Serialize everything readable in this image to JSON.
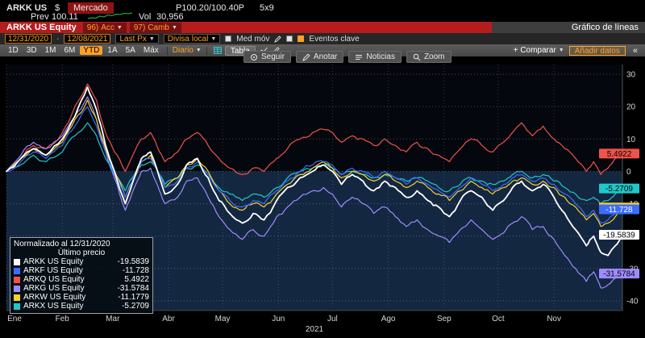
{
  "titlebar": {
    "ticker": "ARKK US",
    "currency": "$",
    "market_status": "Mercado",
    "quote": "P100.20/100.40P",
    "lot_size": "5x9",
    "prev_label": "Prev",
    "prev_value": "100.11",
    "vol_label": "Vol",
    "vol_value": "30,956"
  },
  "function_bar": {
    "security": "ARKK US Equity",
    "actions": [
      {
        "num": "96)",
        "label": "Acc"
      },
      {
        "num": "97)",
        "label": "Camb"
      }
    ],
    "screen_title": "Gráfico de líneas"
  },
  "settings_bar": {
    "date_from": "12/31/2020",
    "date_to": "12/08/2021",
    "price_field": "Last Px",
    "currency_mode": "Divisa local",
    "mov_avg": "Med móv",
    "key_events": "Eventos clave"
  },
  "period_bar": {
    "ranges": [
      "1D",
      "3D",
      "1M",
      "6M",
      "YTD",
      "1A",
      "5A",
      "Máx"
    ],
    "active": "YTD",
    "frequency": "Diario",
    "table": "Tabla",
    "compare": "+ Comparar",
    "add_data": "Añadir datos",
    "collapse": "«"
  },
  "chart_toolbar": {
    "buttons": [
      "Seguir",
      "Anotar",
      "Noticias",
      "Zoom"
    ]
  },
  "legend": {
    "title": "Normalizado al 12/31/2020",
    "subtitle": "Último precio",
    "items": [
      {
        "name": "ARKK US Equity",
        "value": "-19.5839",
        "color": "#ffffff"
      },
      {
        "name": "ARKF US Equity",
        "value": "-11.728",
        "color": "#3d6dff"
      },
      {
        "name": "ARKQ US Equity",
        "value": "5.4922",
        "color": "#f0524a"
      },
      {
        "name": "ARKG US Equity",
        "value": "-31.5784",
        "color": "#9f8bff"
      },
      {
        "name": "ARKW US Equity",
        "value": "-11.1779",
        "color": "#f2d230"
      },
      {
        "name": "ARKX US Equity",
        "value": "-5.2709",
        "color": "#1ec9c9"
      }
    ]
  },
  "chart_data": {
    "type": "line",
    "normalized_to": "12/31/2020",
    "x_axis": {
      "year": "2021",
      "month_labels": [
        "Ene",
        "Feb",
        "Mar",
        "Abr",
        "May",
        "Jun",
        "Jul",
        "Ago",
        "Sep",
        "Oct",
        "Nov"
      ],
      "month_start_days": [
        0,
        31,
        59,
        90,
        120,
        151,
        181,
        212,
        243,
        273,
        304
      ],
      "domain_days": [
        0,
        342
      ]
    },
    "y_axis": {
      "ticks": [
        30,
        20,
        10,
        0,
        -10,
        -20,
        -30,
        -40
      ],
      "range": [
        -43,
        33
      ]
    },
    "x_days": [
      0,
      8,
      15,
      22,
      31,
      38,
      45,
      50,
      55,
      60,
      66,
      71,
      75,
      80,
      85,
      88,
      95,
      100,
      106,
      112,
      118,
      124,
      131,
      137,
      143,
      150,
      156,
      163,
      170,
      176,
      181,
      186,
      192,
      198,
      204,
      210,
      216,
      222,
      228,
      234,
      240,
      246,
      252,
      258,
      264,
      270,
      276,
      281,
      286,
      292,
      298,
      304,
      310,
      316,
      322,
      326,
      330,
      334,
      338,
      342
    ],
    "draw_order": [
      2,
      3,
      5,
      4,
      1,
      0
    ],
    "series": [
      {
        "ticker": "ARKK US Equity",
        "color": "#ffffff",
        "width": 1.8,
        "badge_text": "#000000",
        "last_value": "-19.5839",
        "values": [
          0,
          4,
          7,
          5,
          10,
          17,
          26,
          19,
          8,
          0,
          -10,
          -2,
          4,
          6,
          -2,
          -7,
          -4,
          2,
          4,
          -2,
          -9,
          -13,
          -16,
          -13,
          -15,
          -9,
          -5,
          -2,
          0,
          2,
          0,
          -4,
          -1,
          -3,
          -6,
          -3,
          -5,
          -8,
          -6,
          -9,
          -11,
          -14,
          -9,
          -6,
          -8,
          -12,
          -9,
          -5,
          -3,
          -6,
          -4,
          -8,
          -13,
          -18,
          -23,
          -20,
          -25,
          -26,
          -23,
          -19.5839
        ]
      },
      {
        "ticker": "ARKF US Equity",
        "color": "#3d6dff",
        "width": 1.2,
        "badge_text": "#ffffff",
        "last_value": "-11.728",
        "values": [
          0,
          3,
          6,
          4,
          8,
          14,
          20,
          14,
          6,
          -1,
          -8,
          -1,
          3,
          4,
          -1,
          -5,
          -3,
          1,
          3,
          -1,
          -6,
          -9,
          -11,
          -9,
          -10,
          -6,
          -3,
          0,
          2,
          3,
          2,
          -1,
          1,
          0,
          -2,
          0,
          -2,
          -4,
          -2,
          -4,
          -6,
          -8,
          -5,
          -2,
          -4,
          -6,
          -4,
          -2,
          -1,
          -3,
          -2,
          -4,
          -7,
          -10,
          -14,
          -12,
          -16,
          -15,
          -13,
          -11.728
        ]
      },
      {
        "ticker": "ARKQ US Equity",
        "color": "#f0524a",
        "width": 1.2,
        "badge_text": "#000000",
        "last_value": "5.4922",
        "values": [
          0,
          4,
          8,
          7,
          12,
          20,
          27,
          22,
          12,
          6,
          0,
          6,
          10,
          12,
          6,
          3,
          6,
          10,
          12,
          8,
          4,
          1,
          -1,
          1,
          0,
          4,
          7,
          10,
          12,
          13,
          12,
          9,
          11,
          10,
          8,
          10,
          8,
          6,
          9,
          7,
          5,
          3,
          7,
          10,
          8,
          6,
          9,
          12,
          15,
          11,
          14,
          10,
          7,
          4,
          0,
          3,
          -1,
          1,
          4,
          5.4922
        ]
      },
      {
        "ticker": "ARKG US Equity",
        "color": "#9f8bff",
        "width": 1.2,
        "badge_text": "#000000",
        "last_value": "-31.5784",
        "values": [
          0,
          5,
          9,
          7,
          11,
          17,
          23,
          16,
          6,
          -2,
          -12,
          -5,
          0,
          1,
          -6,
          -10,
          -8,
          -3,
          -2,
          -8,
          -14,
          -18,
          -21,
          -18,
          -20,
          -14,
          -11,
          -8,
          -6,
          -5,
          -7,
          -11,
          -8,
          -10,
          -13,
          -11,
          -14,
          -17,
          -15,
          -18,
          -20,
          -22,
          -18,
          -15,
          -18,
          -21,
          -19,
          -16,
          -14,
          -18,
          -17,
          -21,
          -26,
          -30,
          -34,
          -31,
          -36,
          -35,
          -33,
          -31.5784
        ]
      },
      {
        "ticker": "ARKW US Equity",
        "color": "#f2d230",
        "width": 1.2,
        "badge_text": "#000000",
        "last_value": "-11.1779",
        "values": [
          0,
          4,
          7,
          5,
          9,
          16,
          22,
          16,
          7,
          0,
          -8,
          -2,
          3,
          5,
          -1,
          -5,
          -2,
          2,
          4,
          0,
          -6,
          -10,
          -12,
          -10,
          -11,
          -7,
          -4,
          -1,
          1,
          3,
          1,
          -2,
          0,
          -1,
          -3,
          -1,
          -3,
          -5,
          -3,
          -5,
          -7,
          -9,
          -6,
          -3,
          -5,
          -7,
          -5,
          -3,
          -2,
          -4,
          -3,
          -5,
          -8,
          -11,
          -15,
          -13,
          -17,
          -16,
          -14,
          -11.1779
        ]
      },
      {
        "ticker": "ARKX US Equity",
        "color": "#1ec9c9",
        "width": 1.2,
        "badge_text": "#000000",
        "last_value": "-5.2709",
        "values": [
          0,
          2,
          5,
          3,
          6,
          11,
          15,
          11,
          4,
          -1,
          -6,
          -1,
          2,
          3,
          -1,
          -4,
          -2,
          1,
          2,
          -1,
          -5,
          -7,
          -9,
          -7,
          -8,
          -5,
          -2,
          0,
          1,
          2,
          1,
          -1,
          0,
          -1,
          -2,
          -1,
          -2,
          -3,
          -2,
          -3,
          -5,
          -6,
          -4,
          -2,
          -3,
          -4,
          -3,
          -1,
          0,
          -2,
          -1,
          -3,
          -5,
          -7,
          -9,
          -8,
          -10,
          -9,
          -7,
          -5.2709
        ]
      }
    ]
  }
}
